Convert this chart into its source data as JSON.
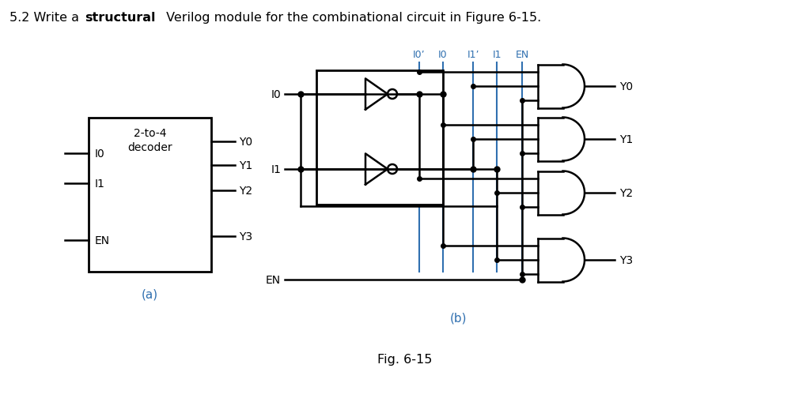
{
  "bg_color": "#ffffff",
  "black": "#000000",
  "blue": "#3070B0",
  "red_label": "#8B0000",
  "title_normal1": "5.2 Write a ",
  "title_bold": "structural",
  "title_normal2": " Verilog module for the combinational circuit in Figure 6-15.",
  "fig_label": "Fig. 6-15",
  "label_a": "(a)",
  "label_b": "(b)",
  "blue_labels": [
    "I0’",
    "I0",
    "I1’",
    "I1",
    "EN"
  ],
  "gate_labels": [
    "Y0",
    "Y1",
    "Y2",
    "Y3"
  ],
  "decoder_inputs_labels": [
    "I0",
    "I1",
    "EN"
  ],
  "decoder_outputs_labels": [
    "Y0",
    "Y1",
    "Y2",
    "Y3"
  ]
}
